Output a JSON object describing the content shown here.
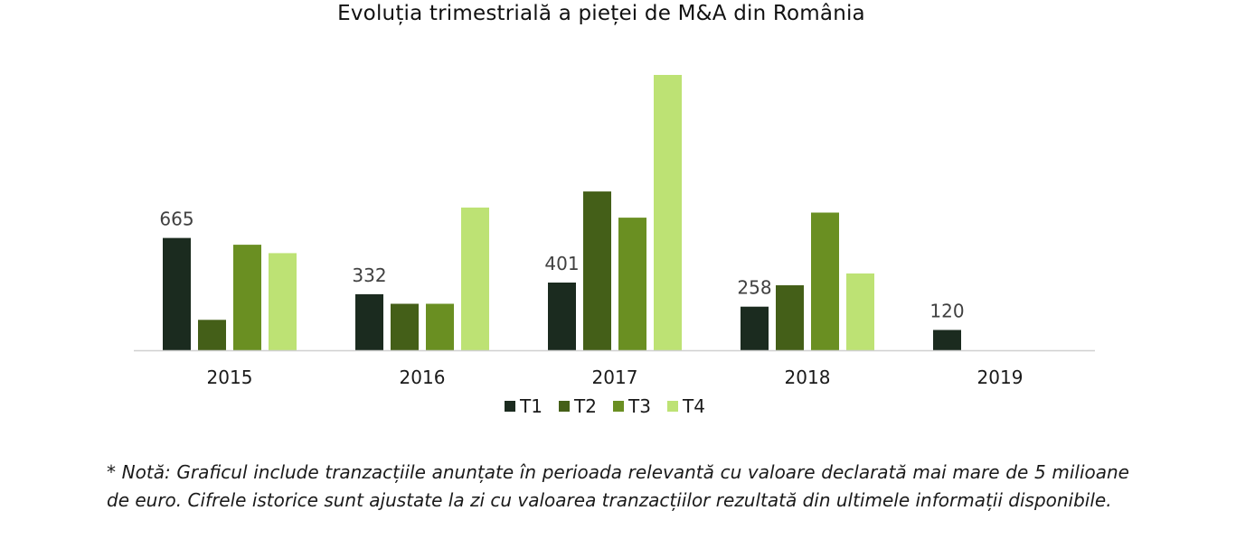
{
  "chart_data": {
    "type": "bar",
    "title": "Evoluția trimestrială a pieței de M&A din România",
    "categories": [
      "2015",
      "2016",
      "2017",
      "2018",
      "2019"
    ],
    "series": [
      {
        "name": "T1",
        "color": "#1b2b1f",
        "values": [
          665,
          332,
          401,
          258,
          120
        ]
      },
      {
        "name": "T2",
        "color": "#445f18",
        "values": [
          180,
          275,
          940,
          385,
          null
        ]
      },
      {
        "name": "T3",
        "color": "#6a8f22",
        "values": [
          625,
          275,
          785,
          815,
          null
        ]
      },
      {
        "name": "T4",
        "color": "#bde274",
        "values": [
          575,
          845,
          1630,
          455,
          null
        ]
      }
    ],
    "data_labels": [
      {
        "series": "T1",
        "category": "2015",
        "text": "665"
      },
      {
        "series": "T1",
        "category": "2016",
        "text": "332"
      },
      {
        "series": "T1",
        "category": "2017",
        "text": "401"
      },
      {
        "series": "T1",
        "category": "2018",
        "text": "258"
      },
      {
        "series": "T1",
        "category": "2019",
        "text": "120"
      }
    ],
    "ylim": [
      0,
      1630
    ],
    "xlabel": "",
    "ylabel": "",
    "grid": false,
    "legend_position": "bottom"
  },
  "note": "* Notă: Graficul include tranzacțiile anunțate în perioada relevantă cu valoare declarată mai mare de 5 milioane de euro. Cifrele istorice sunt ajustate la zi cu valoarea tranzacțiilor rezultată din ultimele informații disponibile."
}
